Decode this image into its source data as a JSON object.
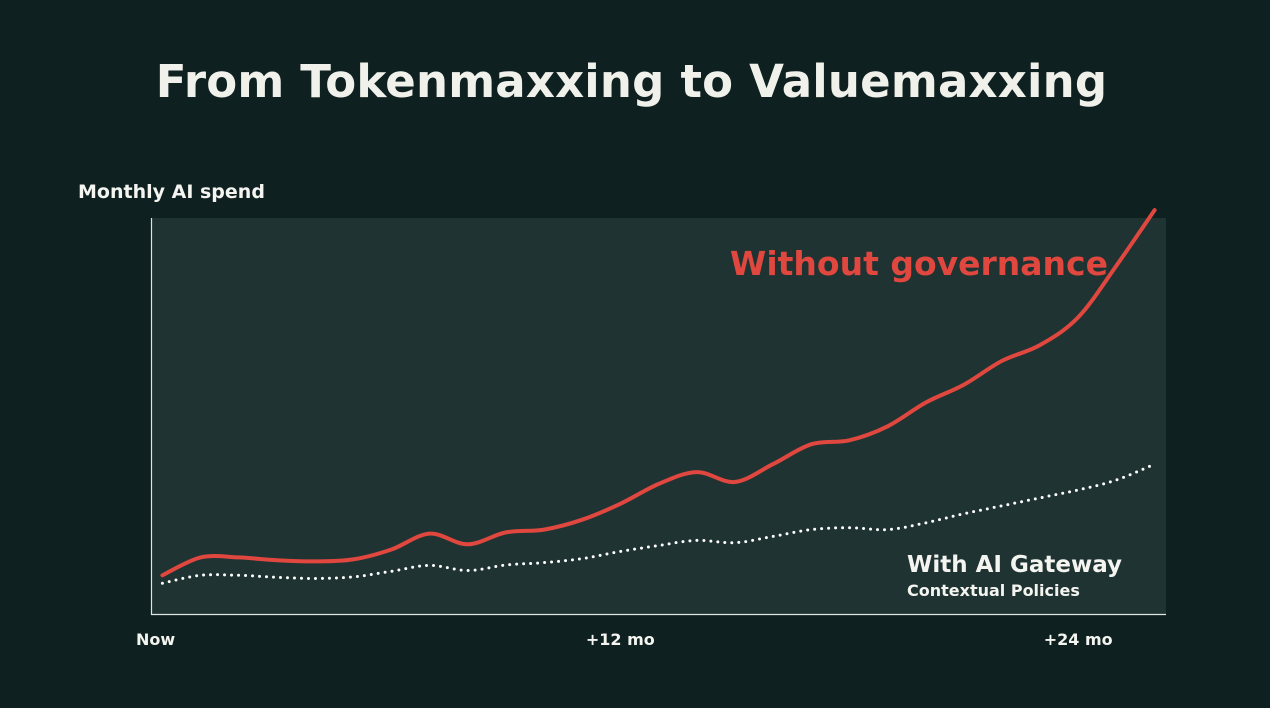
{
  "slide": {
    "title": "From Tokenmaxxing to Valuemaxxing"
  },
  "colors": {
    "background": "#0e2020",
    "plot_area": "#1f3333",
    "without_line": "#e0473f",
    "with_line": "#ffffff"
  },
  "chart_data": {
    "type": "line",
    "title": "From Tokenmaxxing to Valuemaxxing",
    "ylabel": "Monthly AI spend",
    "xlabel": "",
    "x_ticks": [
      {
        "month": 0,
        "label": "Now"
      },
      {
        "month": 12,
        "label": "+12 mo"
      },
      {
        "month": 24,
        "label": "+24 mo"
      }
    ],
    "xlim": [
      -0.3,
      26.3
    ],
    "ylim": [
      0,
      100
    ],
    "y_ticks_shown": false,
    "grid": false,
    "legend": "none",
    "annotations": [
      {
        "series": "without",
        "text": "Without governance"
      },
      {
        "series": "with",
        "text": "With AI Gateway",
        "subtext": "Contextual Policies"
      }
    ],
    "series": [
      {
        "key": "without",
        "style": "solid",
        "color": "#e0473f",
        "x": [
          0,
          1,
          2,
          3,
          4,
          5,
          6,
          7,
          8,
          9,
          10,
          11,
          12,
          13,
          14,
          15,
          16,
          17,
          18,
          19,
          20,
          21,
          22,
          23,
          24,
          25,
          26
        ],
        "y": [
          10,
          14.5,
          14.5,
          13.8,
          13.5,
          14,
          16.5,
          20.5,
          17.8,
          20.8,
          21.5,
          24,
          28,
          33,
          36,
          33.5,
          38,
          43,
          44,
          47.5,
          53.5,
          58,
          64,
          68,
          75,
          88,
          102
        ]
      },
      {
        "key": "with",
        "style": "dotted",
        "color": "#ffffff",
        "x": [
          0,
          1,
          2,
          3,
          4,
          5,
          6,
          7,
          8,
          9,
          10,
          11,
          12,
          13,
          14,
          15,
          16,
          17,
          18,
          19,
          20,
          21,
          22,
          23,
          24,
          25,
          26
        ],
        "y": [
          8,
          10,
          10,
          9.5,
          9.2,
          9.6,
          11,
          12.5,
          11.2,
          12.6,
          13.2,
          14.2,
          16,
          17.5,
          18.8,
          18.2,
          19.8,
          21.5,
          22,
          21.5,
          23.2,
          25.5,
          27.5,
          29.5,
          31.5,
          34,
          38
        ]
      }
    ]
  }
}
